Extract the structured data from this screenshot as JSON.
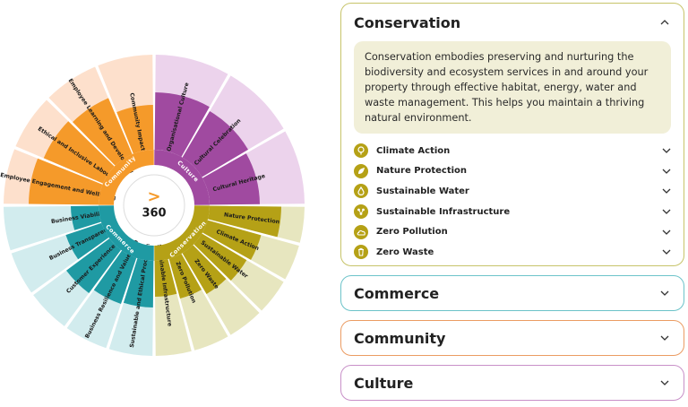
{
  "wheel": {
    "center_text": "360",
    "center_symbol": ">",
    "ring_labels": {
      "community": "Community",
      "culture": "Culture",
      "commerce": "Commerce",
      "conservation": "Conservation"
    },
    "colors": {
      "community": "#f59a2a",
      "community_light": "#fde0cc",
      "culture": "#a04aa0",
      "culture_light": "#ecd3ec",
      "commerce": "#1f9aa3",
      "commerce_light": "#d2ecee",
      "conservation": "#b5a116",
      "conservation_light": "#e7e6bf"
    },
    "community_items": [
      "Employee Engagement and Wellbeing",
      "Ethical and Inclusive Labour",
      "Employee Learning and Development",
      "Community Impact"
    ],
    "culture_items": [
      "Organisational Culture",
      "Cultural Celebration",
      "Cultural Heritage"
    ],
    "conservation_items": [
      "Nature Protection",
      "Climate Action",
      "Sustainable Water",
      "Zero Waste",
      "Zero Pollution",
      "Sustainable Infrastructure"
    ],
    "commerce_items": [
      "Sustainable and Ethical Procurement",
      "Business Resilience and Value Planning",
      "Customer Experience",
      "Business Transparency",
      "Business Viability"
    ]
  },
  "accordion": {
    "conservation": {
      "title": "Conservation",
      "expanded": true,
      "description": "Conservation embodies preserving and nurturing the biodiversity and ecosystem services in and around your property through effective habitat, energy, water and waste management. This helps you maintain a thriving natural environment.",
      "items": [
        {
          "label": "Climate Action",
          "icon": "tree-icon"
        },
        {
          "label": "Nature Protection",
          "icon": "leaf-icon"
        },
        {
          "label": "Sustainable Water",
          "icon": "water-drop-icon"
        },
        {
          "label": "Sustainable Infrastructure",
          "icon": "network-icon"
        },
        {
          "label": "Zero Pollution",
          "icon": "cloud-icon"
        },
        {
          "label": "Zero Waste",
          "icon": "trash-icon"
        }
      ]
    },
    "commerce": {
      "title": "Commerce",
      "expanded": false
    },
    "community": {
      "title": "Community",
      "expanded": false
    },
    "culture": {
      "title": "Culture",
      "expanded": false
    }
  }
}
